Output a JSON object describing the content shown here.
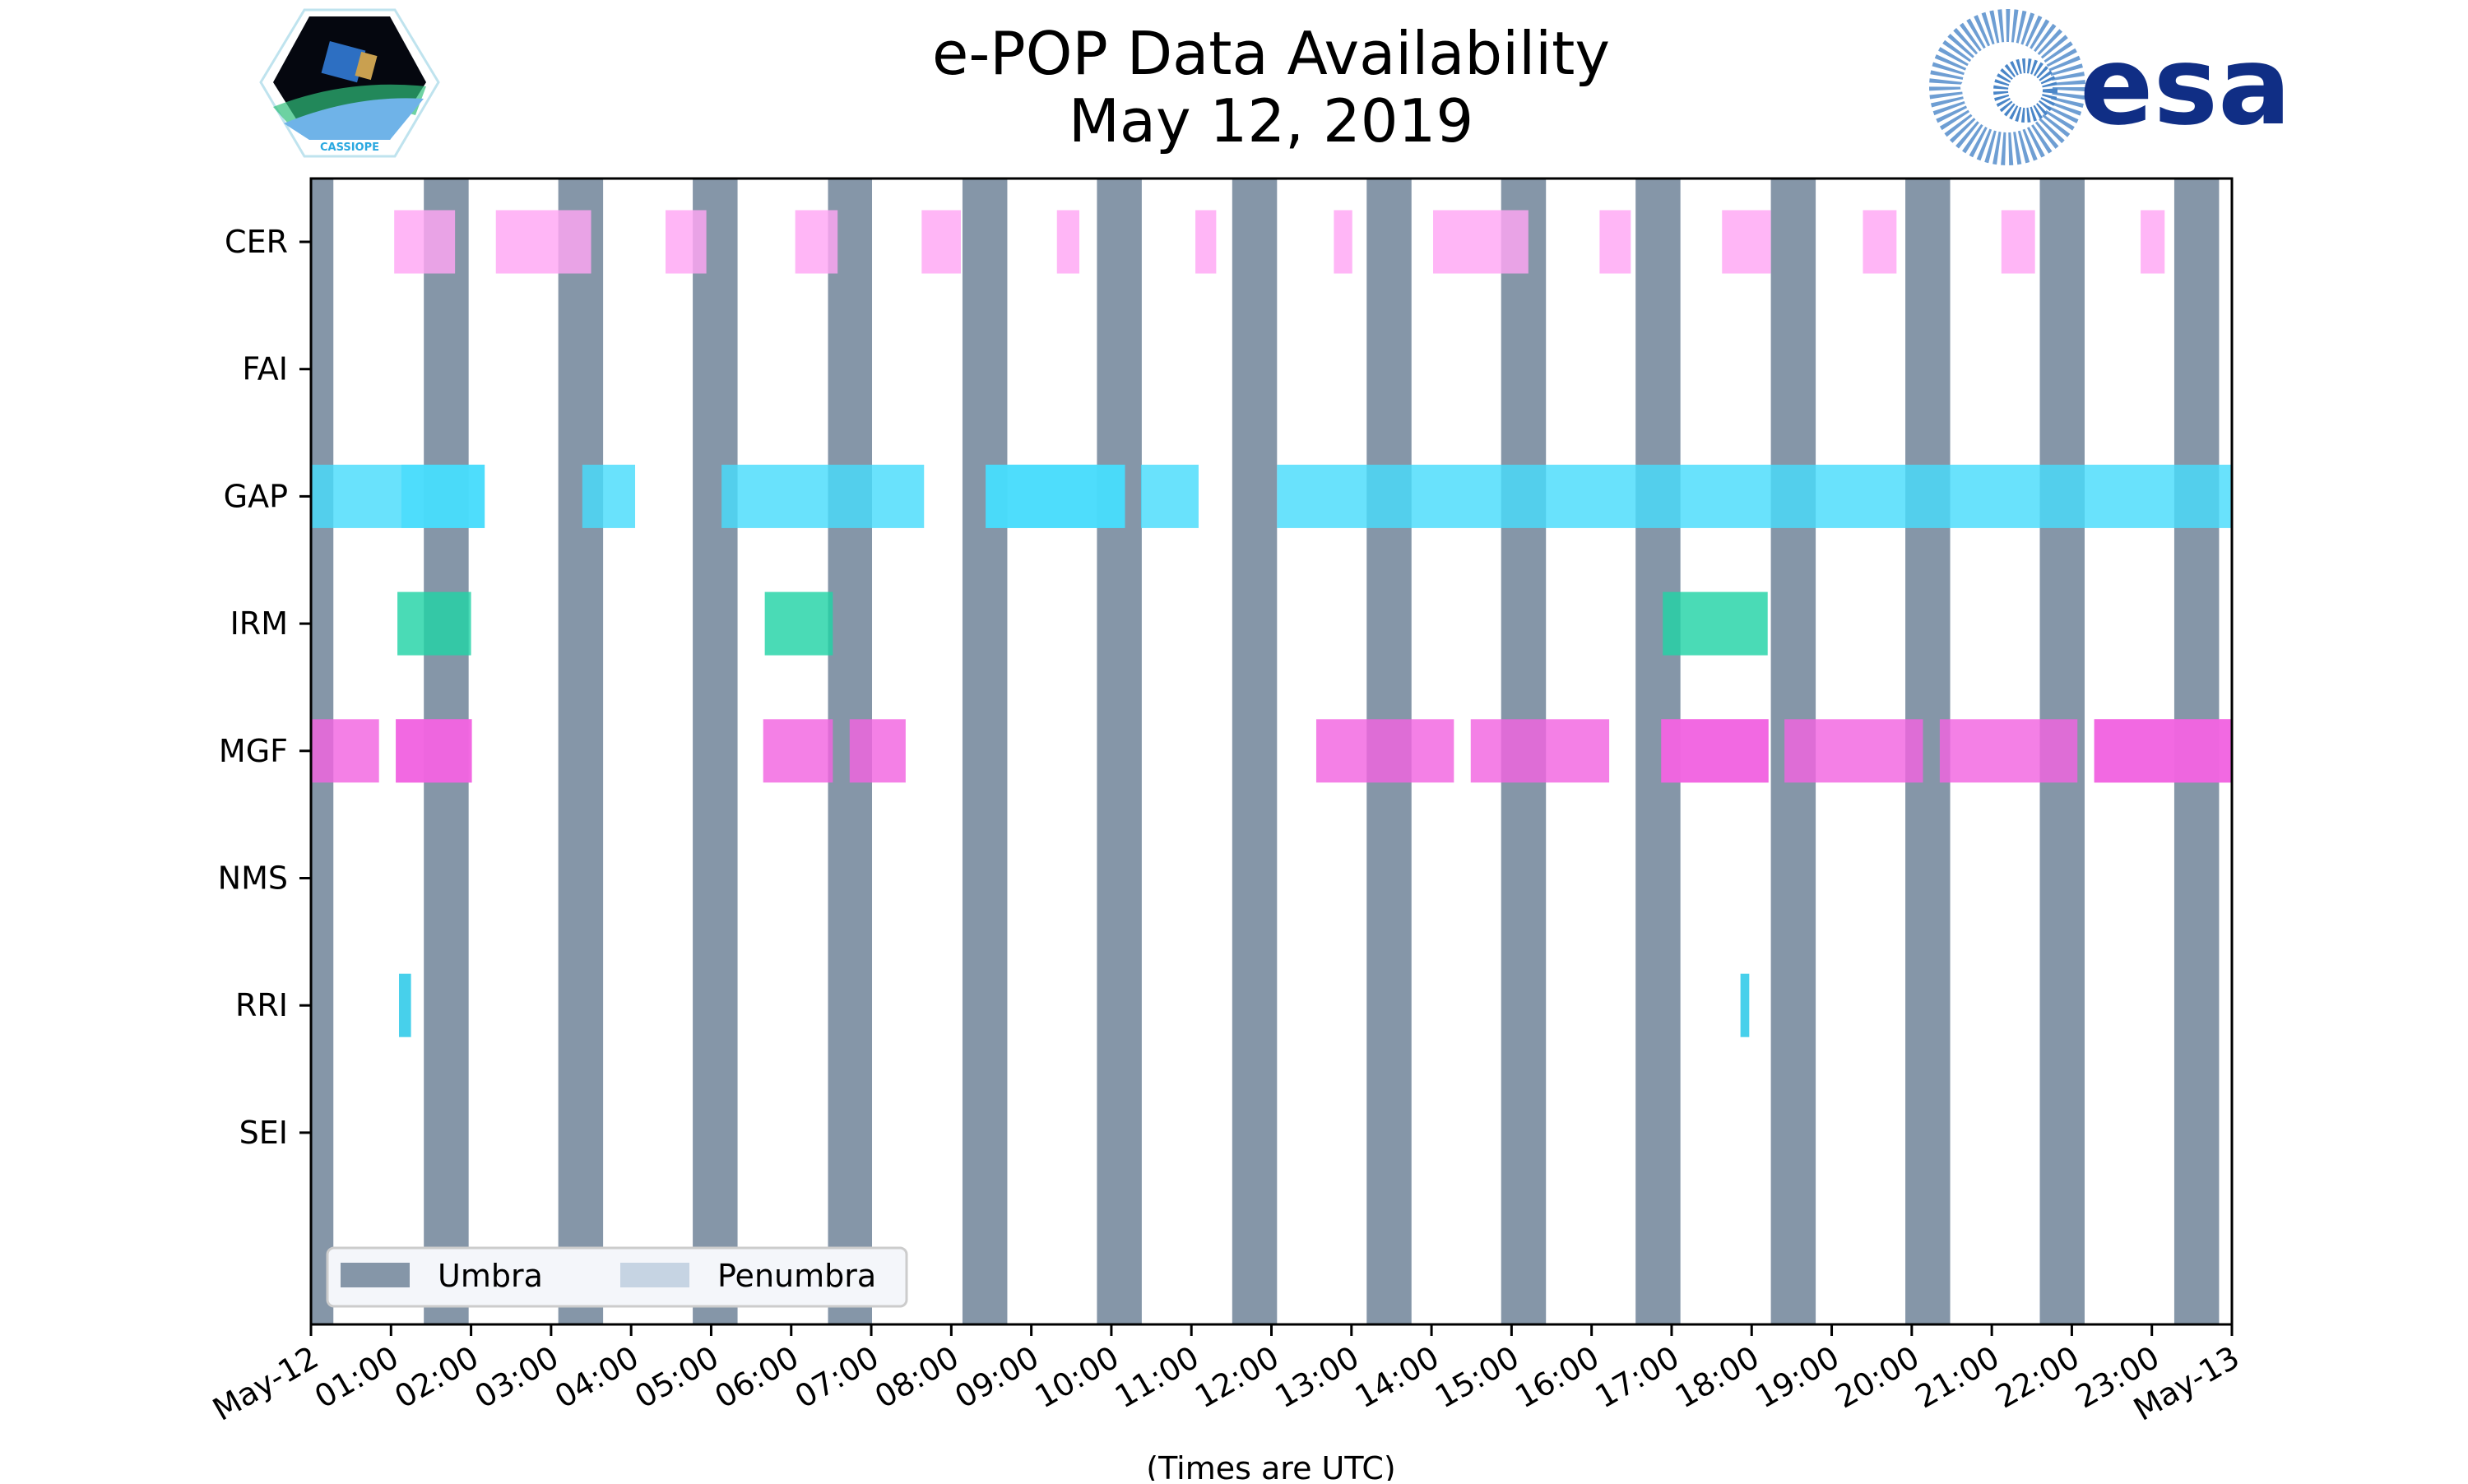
{
  "chart_data": {
    "type": "timeline",
    "title": "e-POP Data Availability",
    "subtitle": "May 12, 2019",
    "xlabel": "(Times are UTC)",
    "xlim_hours": [
      0,
      24
    ],
    "x_tick_labels": [
      "May-12",
      "01:00",
      "02:00",
      "03:00",
      "04:00",
      "05:00",
      "06:00",
      "07:00",
      "08:00",
      "09:00",
      "10:00",
      "11:00",
      "12:00",
      "13:00",
      "14:00",
      "15:00",
      "16:00",
      "17:00",
      "18:00",
      "19:00",
      "20:00",
      "21:00",
      "22:00",
      "23:00",
      "May-13"
    ],
    "categories": [
      "CER",
      "FAI",
      "GAP",
      "IRM",
      "MGF",
      "NMS",
      "RRI",
      "SEI"
    ],
    "legend": {
      "placement": "lower-left",
      "entries": [
        {
          "label": "Umbra",
          "color": "#8596a8"
        },
        {
          "label": "Penumbra",
          "color": "#c6d4e3"
        }
      ]
    },
    "umbra_intervals_hours": [
      [
        0,
        0.28
      ],
      [
        1.41,
        1.97
      ],
      [
        3.09,
        3.65
      ],
      [
        4.77,
        5.33
      ],
      [
        6.46,
        7.01
      ],
      [
        8.14,
        8.7
      ],
      [
        9.82,
        10.38
      ],
      [
        11.51,
        12.07
      ],
      [
        13.19,
        13.75
      ],
      [
        14.87,
        15.43
      ],
      [
        16.55,
        17.11
      ],
      [
        18.24,
        18.8
      ],
      [
        19.92,
        20.48
      ],
      [
        21.6,
        22.16
      ],
      [
        23.28,
        23.84
      ]
    ],
    "penumbra_intervals_hours": [],
    "series": [
      {
        "name": "CER",
        "color": "#ffa6f4",
        "intervals_hours": [
          [
            1.04,
            1.8
          ],
          [
            2.31,
            3.5
          ],
          [
            4.43,
            4.94
          ],
          [
            6.05,
            6.58
          ],
          [
            7.63,
            8.12
          ],
          [
            9.32,
            9.6
          ],
          [
            11.05,
            11.31
          ],
          [
            12.78,
            13.01
          ],
          [
            14.02,
            15.21
          ],
          [
            16.1,
            16.49
          ],
          [
            17.63,
            18.24
          ],
          [
            19.39,
            19.81
          ],
          [
            21.12,
            21.54
          ],
          [
            22.86,
            23.16
          ]
        ]
      },
      {
        "name": "FAI",
        "color": "#ff9900",
        "intervals_hours": []
      },
      {
        "name": "GAP",
        "color": "#48dcfb",
        "intervals_hours": [
          [
            0,
            2.17
          ],
          [
            1.13,
            2.17
          ],
          [
            3.39,
            4.05
          ],
          [
            5.13,
            7.66
          ],
          [
            8.43,
            10.17
          ],
          [
            8.43,
            10.17
          ],
          [
            10.37,
            11.09
          ],
          [
            12.07,
            24
          ]
        ]
      },
      {
        "name": "IRM",
        "color": "#22d3a6",
        "intervals_hours": [
          [
            1.08,
            2.0
          ],
          [
            5.67,
            6.52
          ],
          [
            16.89,
            18.2
          ]
        ]
      },
      {
        "name": "MGF",
        "color": "#f264e1",
        "intervals_hours": [
          [
            0,
            0.85
          ],
          [
            1.06,
            2.01
          ],
          [
            1.06,
            2.01
          ],
          [
            5.65,
            6.52
          ],
          [
            6.73,
            7.43
          ],
          [
            12.56,
            14.28
          ],
          [
            14.49,
            16.22
          ],
          [
            16.87,
            18.21
          ],
          [
            16.87,
            18.21
          ],
          [
            18.41,
            20.14
          ],
          [
            20.35,
            22.07
          ],
          [
            22.28,
            24
          ],
          [
            22.28,
            24
          ]
        ]
      },
      {
        "name": "NMS",
        "color": "#888888",
        "intervals_hours": []
      },
      {
        "name": "RRI",
        "color": "#1fc6e6",
        "intervals_hours": [
          [
            1.1,
            1.25
          ],
          [
            17.86,
            17.97
          ]
        ]
      },
      {
        "name": "SEI",
        "color": "#888888",
        "intervals_hours": []
      }
    ]
  },
  "logos": {
    "left": "CASSIOPE",
    "right": "esa"
  }
}
